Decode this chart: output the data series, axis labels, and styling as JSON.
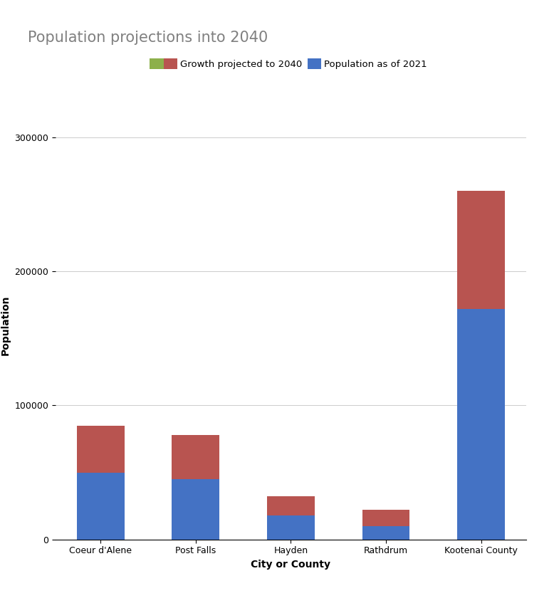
{
  "title": "Population projections into 2040",
  "xlabel": "City or County",
  "ylabel": "Population",
  "categories": [
    "Coeur d'Alene",
    "Post Falls",
    "Hayden",
    "Rathdrum",
    "Kootenai County"
  ],
  "population_2021": [
    50000,
    45000,
    18000,
    10000,
    172000
  ],
  "growth_to_2040": [
    35000,
    33000,
    14000,
    12000,
    88000
  ],
  "color_population": "#4472C4",
  "color_growth": "#B85450",
  "color_growth_legend": "#8DB04B",
  "ylim": [
    0,
    320000
  ],
  "yticks": [
    0,
    100000,
    200000,
    300000
  ],
  "legend_labels": [
    "Growth projected to 2040",
    "Population as of 2021"
  ],
  "title_color": "#808080",
  "title_fontsize": 15,
  "axis_label_fontsize": 10,
  "tick_fontsize": 9,
  "bar_width": 0.5,
  "figsize": [
    7.78,
    8.61
  ],
  "dpi": 100
}
